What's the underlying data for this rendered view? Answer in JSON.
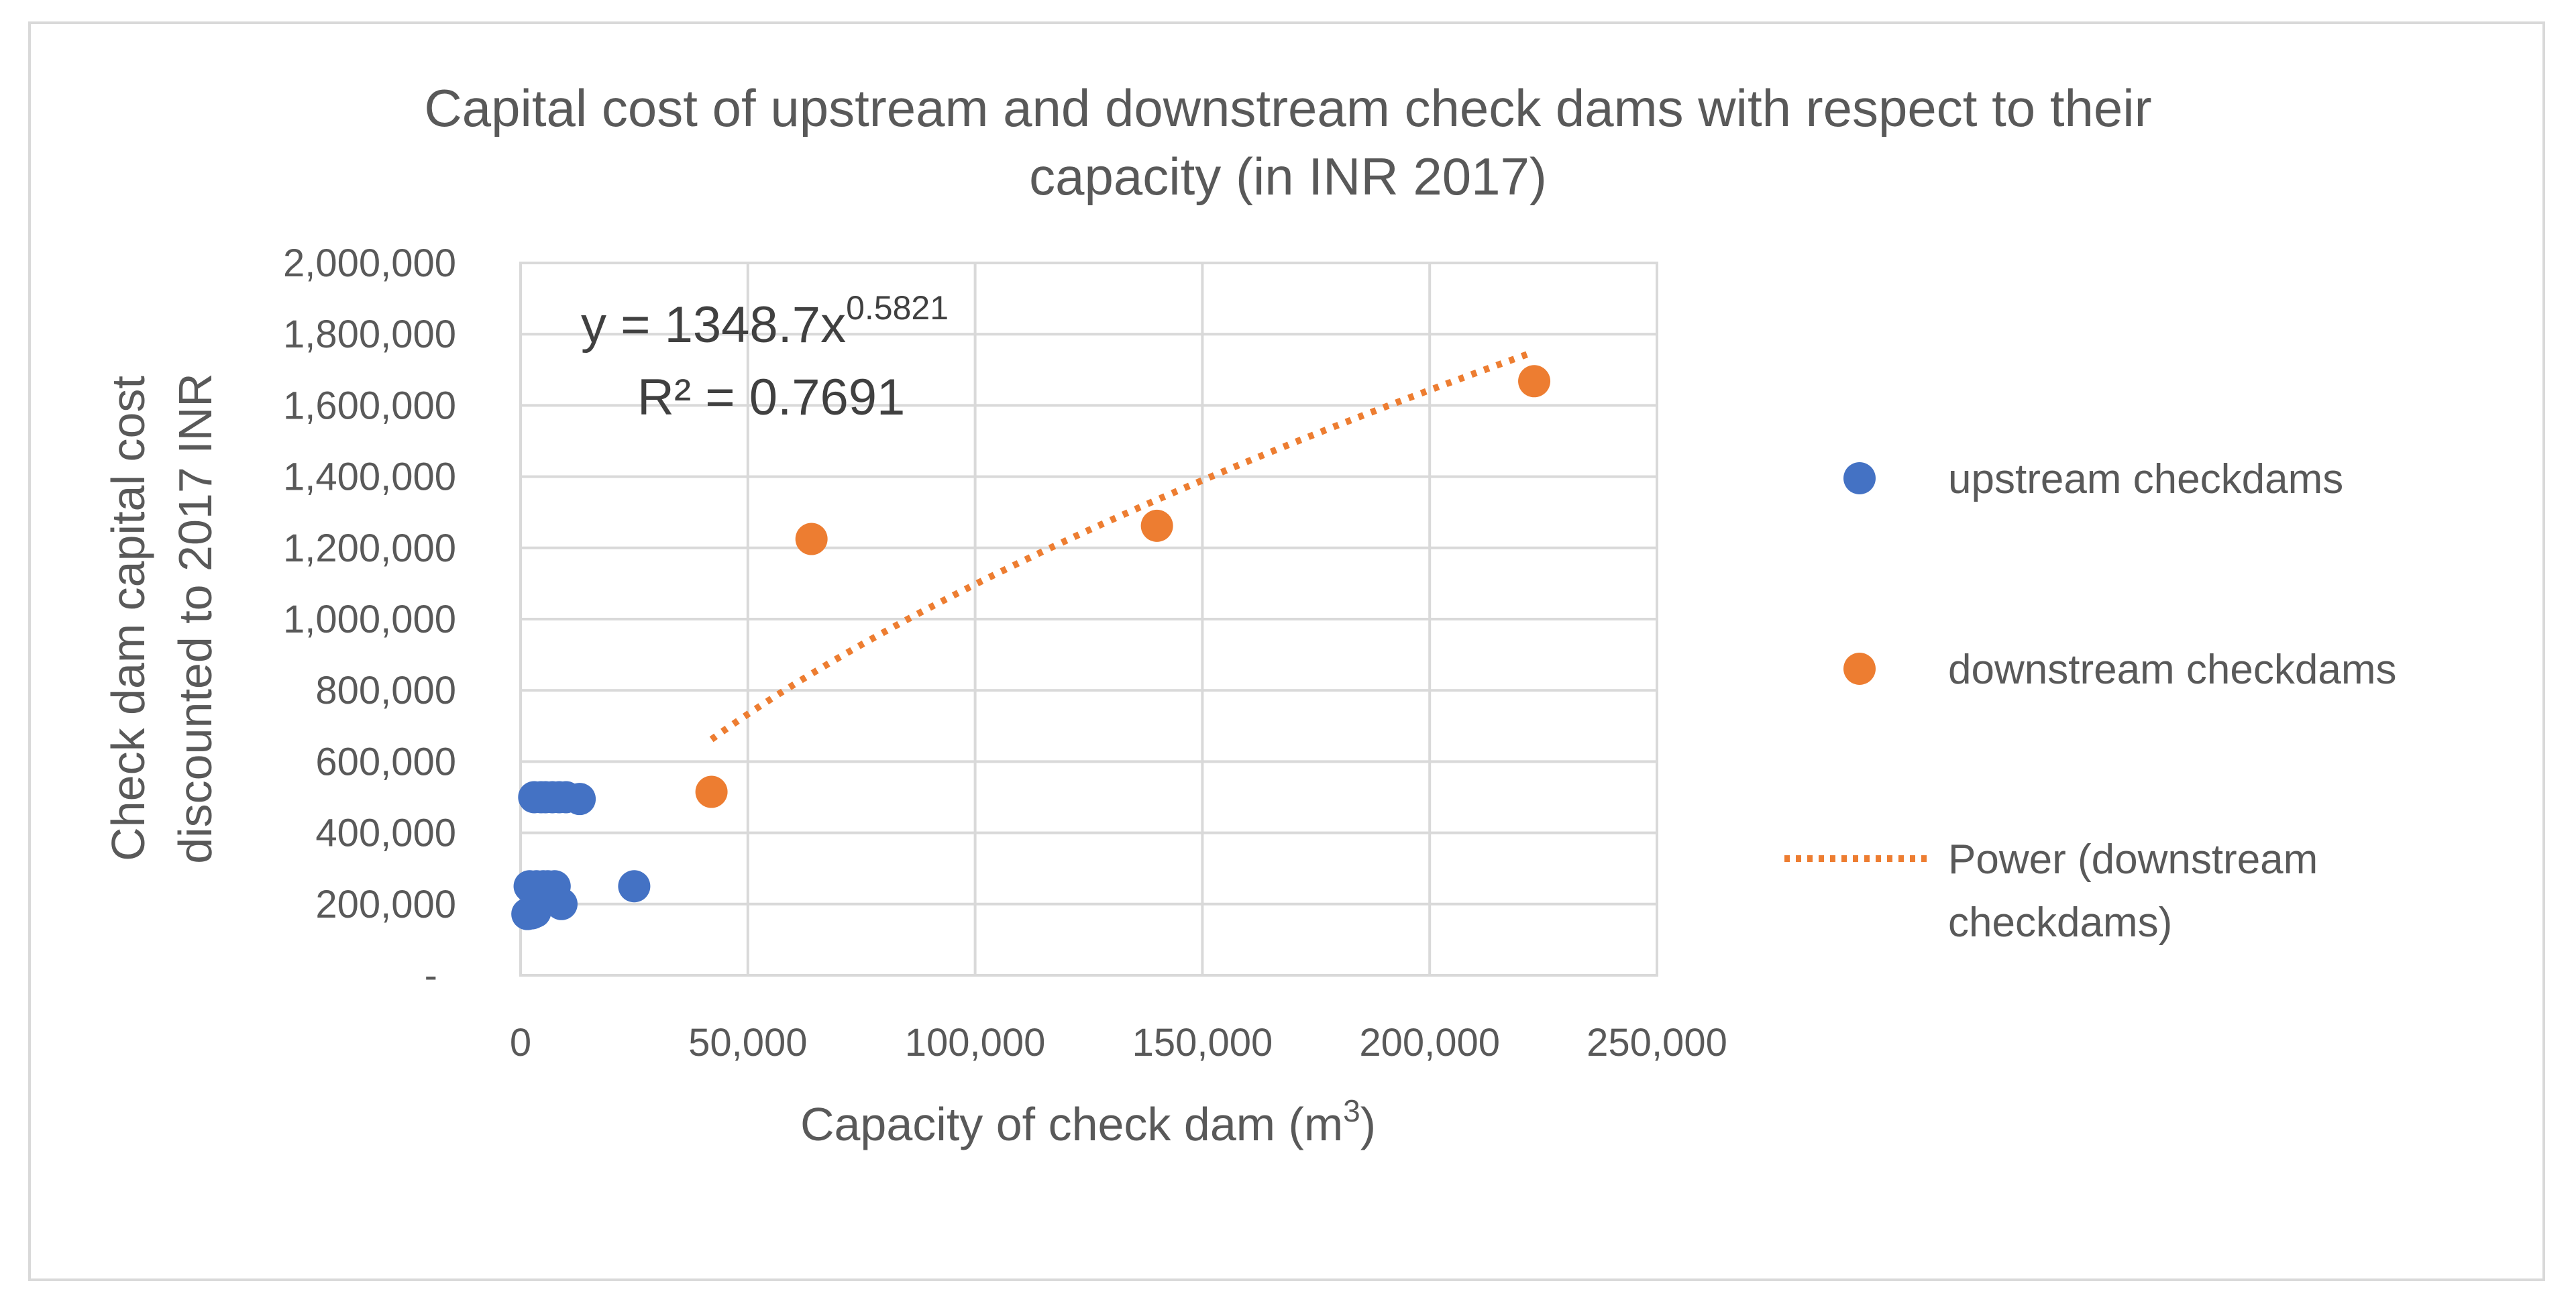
{
  "chart_data": {
    "type": "scatter",
    "title_lines": [
      "Capital cost of upstream and downstream check dams with respect to their",
      "capacity (in INR 2017)"
    ],
    "xlabel": {
      "text": "Capacity of check dam (m",
      "sup": "3",
      "close": ")"
    },
    "ylabel_lines": [
      "Check dam capital cost",
      "discounted to 2017 INR"
    ],
    "xlim": [
      0,
      250000
    ],
    "ylim": [
      0,
      2000000
    ],
    "x_ticks": [
      0,
      50000,
      100000,
      150000,
      200000,
      250000
    ],
    "x_tick_labels": [
      "0",
      "50,000",
      "100,000",
      "150,000",
      "200,000",
      "250,000"
    ],
    "y_ticks": [
      0,
      200000,
      400000,
      600000,
      800000,
      1000000,
      1200000,
      1400000,
      1600000,
      1800000,
      2000000
    ],
    "y_tick_labels": [
      "-",
      "200,000",
      "400,000",
      "600,000",
      "800,000",
      "1,000,000",
      "1,200,000",
      "1,400,000",
      "1,600,000",
      "1,800,000",
      "2,000,000"
    ],
    "grid": true,
    "series": [
      {
        "name": "upstream checkdams",
        "color": "#4472c4",
        "points": [
          [
            1500,
            172000
          ],
          [
            2500,
            174000
          ],
          [
            3200,
            178000
          ],
          [
            2000,
            250000
          ],
          [
            3500,
            250000
          ],
          [
            5000,
            250000
          ],
          [
            6000,
            250000
          ],
          [
            7500,
            250000
          ],
          [
            9000,
            200000
          ],
          [
            25000,
            250000
          ],
          [
            3000,
            500000
          ],
          [
            4500,
            500000
          ],
          [
            5500,
            500000
          ],
          [
            7000,
            500000
          ],
          [
            8500,
            500000
          ],
          [
            10000,
            500000
          ],
          [
            13000,
            495000
          ]
        ]
      },
      {
        "name": "downstream checkdams",
        "color": "#ed7d31",
        "points": [
          [
            42000,
            515000
          ],
          [
            64000,
            1225000
          ],
          [
            140000,
            1262000
          ],
          [
            223000,
            1668000
          ]
        ]
      }
    ],
    "trendline": {
      "name_lines": [
        "Power (downstream",
        "checkdams)"
      ],
      "type": "power",
      "coefficient": 1348.7,
      "exponent": 0.5821,
      "x_range": [
        42000,
        222000
      ],
      "color": "#ed7d31"
    },
    "equation": {
      "lhs": "y = 1348.7x",
      "exponent_text": "0.5821",
      "r2": "R² = 0.7691"
    },
    "legend_position": "right"
  }
}
